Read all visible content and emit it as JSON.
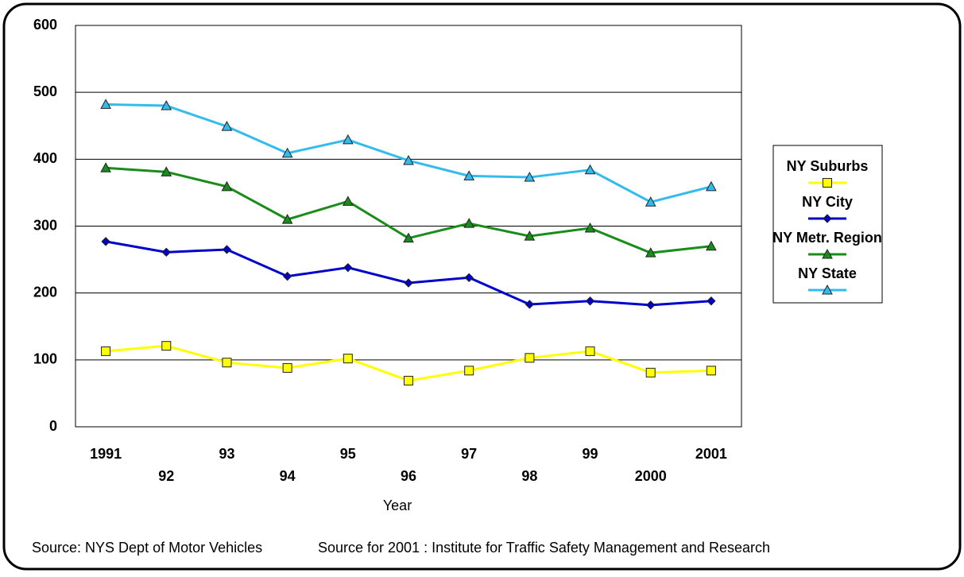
{
  "chart_data": {
    "type": "line",
    "x_label": "Year",
    "categories": [
      "1991",
      "92",
      "93",
      "94",
      "95",
      "96",
      "97",
      "98",
      "99",
      "2000",
      "2001"
    ],
    "series": [
      {
        "name": "NY Suburbs",
        "color": "#ffff00",
        "marker": "square",
        "values": [
          113,
          121,
          96,
          88,
          102,
          69,
          84,
          103,
          113,
          81,
          84
        ]
      },
      {
        "name": "NY City",
        "color": "#0000cc",
        "marker": "diamond",
        "values": [
          277,
          261,
          265,
          225,
          238,
          215,
          223,
          183,
          188,
          182,
          188
        ]
      },
      {
        "name": "NY Metr. Region",
        "color": "#1a8c1a",
        "marker": "triangle",
        "values": [
          387,
          381,
          359,
          310,
          337,
          282,
          304,
          285,
          297,
          260,
          270
        ]
      },
      {
        "name": "NY State",
        "color": "#33bbee",
        "marker": "triangle",
        "values": [
          482,
          480,
          449,
          409,
          429,
          398,
          375,
          373,
          384,
          336,
          359
        ]
      }
    ],
    "ylim": [
      0,
      600
    ],
    "yticks": [
      0,
      100,
      200,
      300,
      400,
      500,
      600
    ],
    "grid": true,
    "legend": "right",
    "sources": [
      "Source: NYS Dept of Motor Vehicles",
      "Source for 2001 : Institute for Traffic Safety Management and Research"
    ]
  }
}
